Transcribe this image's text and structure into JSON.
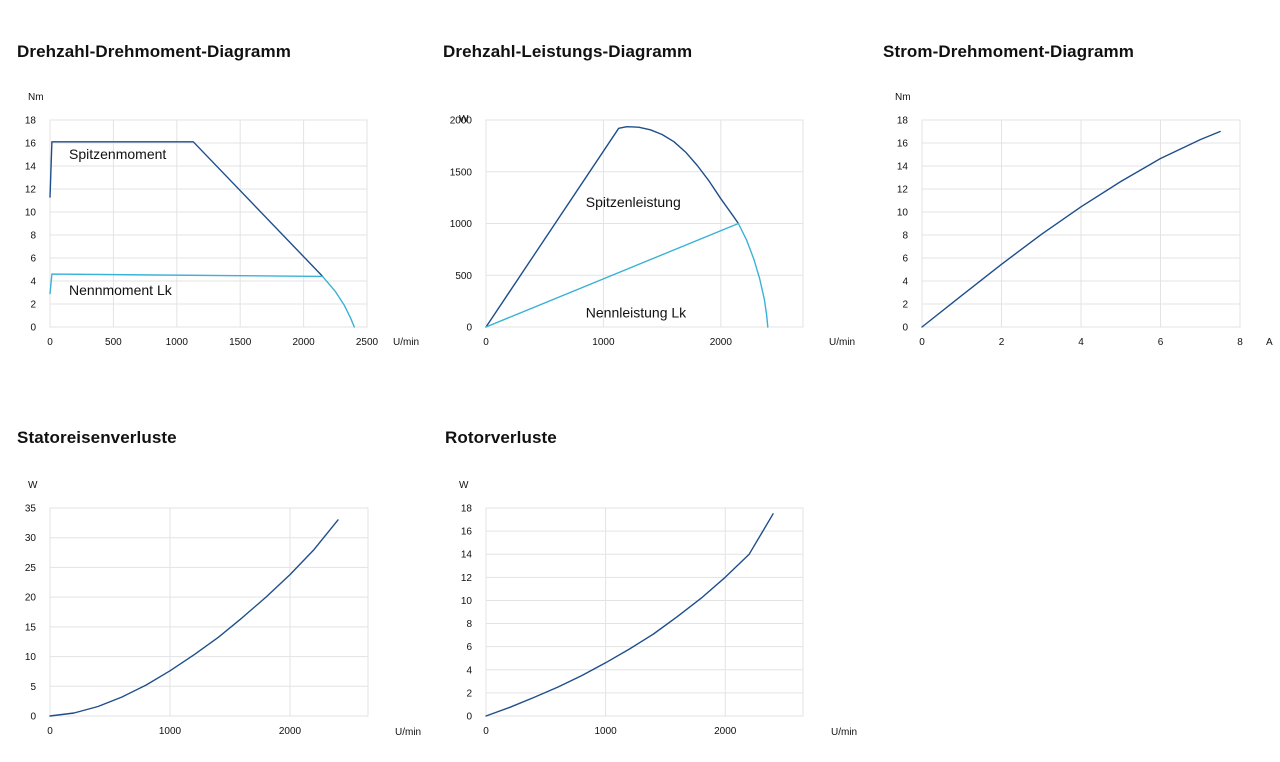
{
  "chart_data": [
    {
      "id": "drehzahl-drehmoment",
      "type": "line",
      "title": "Drehzahl-Drehmoment-Diagramm",
      "xlabel": "U/min",
      "ylabel": "Nm",
      "xlim": [
        0,
        2500
      ],
      "ylim": [
        0,
        18
      ],
      "xticks": [
        0,
        500,
        1000,
        1500,
        2000,
        2500
      ],
      "yticks": [
        0,
        2,
        4,
        6,
        8,
        10,
        12,
        14,
        16,
        18
      ],
      "grid": true,
      "series": [
        {
          "name": "Spitzenmoment",
          "color": "#1f4e8c",
          "x": [
            0,
            15,
            30,
            1130,
            2150
          ],
          "y": [
            11.3,
            16.1,
            16.1,
            16.1,
            4.4
          ]
        },
        {
          "color": "#3bb1d6",
          "x": [
            2150,
            2250,
            2320,
            2370,
            2400
          ],
          "y": [
            4.4,
            3.1,
            1.9,
            0.8,
            0
          ]
        },
        {
          "name": "Nennmoment Lk",
          "color": "#3bb1d6",
          "x": [
            0,
            15,
            2150
          ],
          "y": [
            2.9,
            4.6,
            4.4
          ]
        }
      ],
      "annotations": [
        {
          "text": "Spitzenmoment",
          "x": 150,
          "y": 14.6
        },
        {
          "text": "Nennmoment Lk",
          "x": 150,
          "y": 2.8
        }
      ]
    },
    {
      "id": "drehzahl-leistung",
      "type": "line",
      "title": "Drehzahl-Leistungs-Diagramm",
      "xlabel": "U/min",
      "ylabel": "W",
      "xlim": [
        0,
        2700
      ],
      "ylim": [
        0,
        2000
      ],
      "xticks": [
        0,
        1000,
        2000
      ],
      "yticks": [
        0,
        500,
        1000,
        1500,
        2000
      ],
      "grid": true,
      "series": [
        {
          "name": "Spitzenleistung",
          "color": "#1f4e8c",
          "x": [
            0,
            1130,
            1200,
            1300,
            1400,
            1500,
            1600,
            1700,
            1800,
            1900,
            2000,
            2100,
            2150
          ],
          "y": [
            0,
            1920,
            1935,
            1930,
            1905,
            1860,
            1790,
            1690,
            1560,
            1410,
            1240,
            1080,
            1000
          ]
        },
        {
          "color": "#3bb1d6",
          "x": [
            2150,
            2220,
            2280,
            2330,
            2370,
            2390,
            2400
          ],
          "y": [
            1000,
            840,
            660,
            470,
            270,
            120,
            0
          ]
        },
        {
          "name": "Nennleistung Lk",
          "color": "#3bb1d6",
          "x": [
            0,
            2150
          ],
          "y": [
            0,
            1000
          ]
        }
      ],
      "annotations": [
        {
          "text": "Spitzenleistung",
          "x": 850,
          "y": 1160
        },
        {
          "text": "Nennleistung Lk",
          "x": 850,
          "y": 90
        }
      ]
    },
    {
      "id": "strom-drehmoment",
      "type": "line",
      "title": "Strom-Drehmoment-Diagramm",
      "xlabel": "A",
      "ylabel": "Nm",
      "xlim": [
        0,
        8
      ],
      "ylim": [
        0,
        18
      ],
      "xticks": [
        0,
        2,
        4,
        6,
        8
      ],
      "yticks": [
        0,
        2,
        4,
        6,
        8,
        10,
        12,
        14,
        16,
        18
      ],
      "grid": true,
      "series": [
        {
          "color": "#1f4e8c",
          "x": [
            0,
            1,
            2,
            3,
            4,
            5,
            6,
            7,
            7.5
          ],
          "y": [
            0,
            2.75,
            5.45,
            8.05,
            10.45,
            12.65,
            14.65,
            16.3,
            17.0
          ]
        }
      ]
    },
    {
      "id": "statoreisenverluste",
      "type": "line",
      "title": "Statoreisenverluste",
      "xlabel": "U/min",
      "ylabel": "W",
      "xlim": [
        0,
        2650
      ],
      "ylim": [
        0,
        35
      ],
      "xticks": [
        0,
        1000,
        2000
      ],
      "yticks": [
        0,
        5,
        10,
        15,
        20,
        25,
        30,
        35
      ],
      "grid": true,
      "series": [
        {
          "color": "#1f4e8c",
          "x": [
            0,
            200,
            400,
            600,
            800,
            1000,
            1200,
            1400,
            1600,
            1800,
            2000,
            2200,
            2400
          ],
          "y": [
            0,
            0.5,
            1.6,
            3.2,
            5.2,
            7.6,
            10.3,
            13.2,
            16.5,
            20.0,
            23.8,
            28.0,
            33.0
          ]
        }
      ]
    },
    {
      "id": "rotorverluste",
      "type": "line",
      "title": "Rotorverluste",
      "xlabel": "U/min",
      "ylabel": "W",
      "xlim": [
        0,
        2650
      ],
      "ylim": [
        0,
        18
      ],
      "xticks": [
        0,
        1000,
        2000
      ],
      "yticks": [
        0,
        2,
        4,
        6,
        8,
        10,
        12,
        14,
        16,
        18
      ],
      "grid": true,
      "series": [
        {
          "color": "#1f4e8c",
          "x": [
            0,
            200,
            400,
            600,
            800,
            1000,
            1200,
            1400,
            1600,
            1800,
            2000,
            2200,
            2400
          ],
          "y": [
            0,
            0.75,
            1.6,
            2.5,
            3.5,
            4.6,
            5.8,
            7.1,
            8.6,
            10.2,
            12.0,
            14.0,
            17.5
          ]
        }
      ]
    }
  ]
}
